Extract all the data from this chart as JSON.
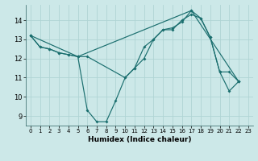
{
  "background_color": "#cce8e8",
  "grid_color": "#b0d4d4",
  "line_color": "#1a6e6e",
  "xlabel": "Humidex (Indice chaleur)",
  "xlim": [
    -0.5,
    23.5
  ],
  "ylim": [
    8.5,
    14.8
  ],
  "xticks": [
    0,
    1,
    2,
    3,
    4,
    5,
    6,
    7,
    8,
    9,
    10,
    11,
    12,
    13,
    14,
    15,
    16,
    17,
    18,
    19,
    20,
    21,
    22,
    23
  ],
  "yticks": [
    9,
    10,
    11,
    12,
    13,
    14
  ],
  "line1_x": [
    0,
    1,
    2,
    3,
    4,
    5,
    6,
    7,
    8,
    9,
    10,
    11,
    12,
    13,
    14,
    15,
    16,
    17,
    18,
    19,
    20,
    21,
    22
  ],
  "line1_y": [
    13.2,
    12.6,
    12.5,
    12.3,
    12.2,
    12.1,
    9.3,
    8.7,
    8.7,
    9.8,
    11.0,
    11.5,
    12.6,
    13.0,
    13.5,
    13.6,
    13.9,
    14.5,
    14.1,
    13.1,
    11.3,
    10.3,
    10.8
  ],
  "line2_x": [
    0,
    1,
    2,
    3,
    4,
    5,
    6,
    10,
    11,
    12,
    13,
    14,
    15,
    16,
    17,
    18,
    19,
    20,
    21,
    22
  ],
  "line2_y": [
    13.2,
    12.6,
    12.5,
    12.3,
    12.2,
    12.1,
    12.1,
    11.0,
    11.5,
    12.0,
    13.0,
    13.5,
    13.5,
    14.0,
    14.3,
    14.1,
    13.1,
    11.3,
    11.3,
    10.8
  ],
  "line3_x": [
    0,
    5,
    17,
    22
  ],
  "line3_y": [
    13.2,
    12.1,
    14.5,
    10.8
  ]
}
